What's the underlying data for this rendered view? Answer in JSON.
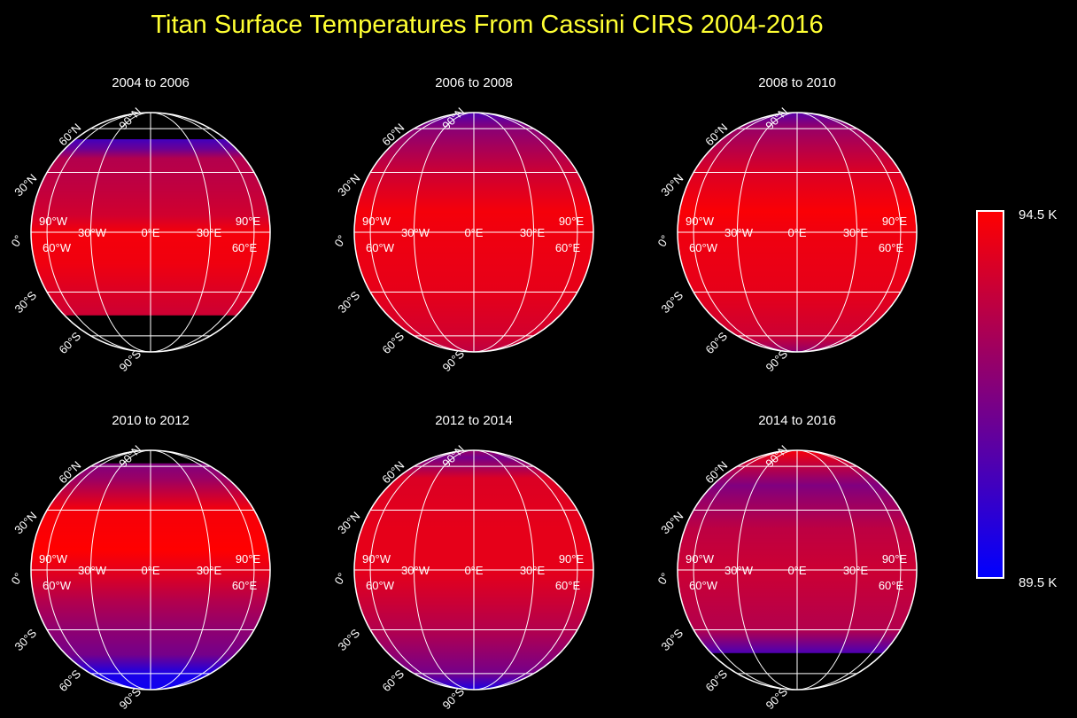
{
  "title": "Titan Surface Temperatures From Cassini CIRS 2004-2016",
  "colorbar": {
    "min_label": "89.5 K",
    "max_label": "94.5 K",
    "min": 89.5,
    "max": 94.5,
    "min_color": "#0000ff",
    "max_color": "#ff0000"
  },
  "grid_labels": {
    "lat": [
      "90°N",
      "60°N",
      "30°N",
      "30°S",
      "60°S",
      "90°S"
    ],
    "lon": [
      "0°",
      "90°W",
      "60°W",
      "30°W",
      "0°E",
      "30°E",
      "60°E",
      "90°E"
    ]
  },
  "panels": [
    {
      "label": "2004 to 2006",
      "coverage": [
        -44,
        51
      ],
      "profile": [
        [
          51,
          90.8
        ],
        [
          44,
          91.6
        ],
        [
          38,
          93.0
        ],
        [
          20,
          93.3
        ],
        [
          8,
          93.6
        ],
        [
          0,
          94.3
        ],
        [
          -15,
          94.2
        ],
        [
          -30,
          93.8
        ],
        [
          -44,
          93.5
        ]
      ]
    },
    {
      "label": "2006 to 2008",
      "coverage": [
        -90,
        90
      ],
      "profile": [
        [
          90,
          91.0
        ],
        [
          60,
          92.2
        ],
        [
          30,
          93.5
        ],
        [
          10,
          94.3
        ],
        [
          0,
          94.2
        ],
        [
          -30,
          94.0
        ],
        [
          -60,
          93.6
        ],
        [
          -90,
          93.2
        ]
      ]
    },
    {
      "label": "2008 to 2010",
      "coverage": [
        -90,
        90
      ],
      "profile": [
        [
          90,
          91.2
        ],
        [
          60,
          92.5
        ],
        [
          30,
          93.8
        ],
        [
          10,
          94.4
        ],
        [
          0,
          94.2
        ],
        [
          -30,
          94.0
        ],
        [
          -60,
          93.5
        ],
        [
          -80,
          92.5
        ],
        [
          -90,
          91.5
        ]
      ]
    },
    {
      "label": "2010 to 2012",
      "coverage": [
        -90,
        63
      ],
      "profile": [
        [
          63,
          92.0
        ],
        [
          50,
          92.5
        ],
        [
          30,
          94.3
        ],
        [
          10,
          94.5
        ],
        [
          0,
          94.0
        ],
        [
          -15,
          93.0
        ],
        [
          -30,
          92.3
        ],
        [
          -45,
          91.8
        ],
        [
          -60,
          90.0
        ],
        [
          -90,
          89.8
        ]
      ]
    },
    {
      "label": "2012 to 2014",
      "coverage": [
        -90,
        90
      ],
      "profile": [
        [
          90,
          92.5
        ],
        [
          70,
          91.8
        ],
        [
          50,
          93.8
        ],
        [
          20,
          94.0
        ],
        [
          0,
          94.0
        ],
        [
          -30,
          93.0
        ],
        [
          -60,
          91.8
        ],
        [
          -90,
          90.0
        ]
      ]
    },
    {
      "label": "2014 to 2016",
      "coverage": [
        -44,
        90
      ],
      "profile": [
        [
          90,
          94.0
        ],
        [
          80,
          94.2
        ],
        [
          60,
          93.2
        ],
        [
          45,
          92.0
        ],
        [
          35,
          92.5
        ],
        [
          20,
          93.2
        ],
        [
          0,
          93.5
        ],
        [
          -30,
          93.0
        ],
        [
          -40,
          91.5
        ],
        [
          -44,
          91.0
        ]
      ]
    }
  ]
}
